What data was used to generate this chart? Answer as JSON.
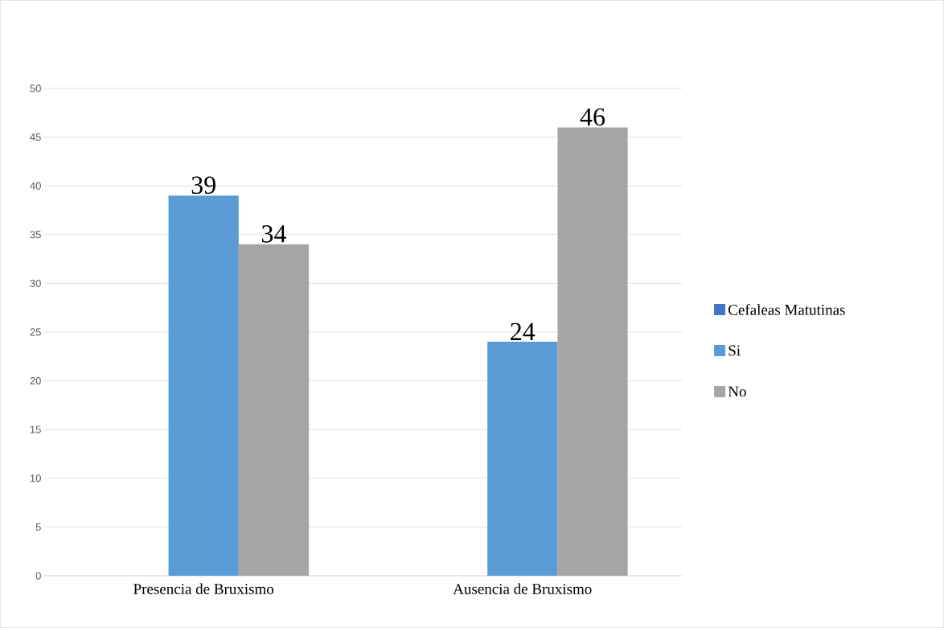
{
  "chart_data": {
    "type": "bar",
    "categories": [
      "Presencia de Bruxismo",
      "Ausencia de Bruxismo"
    ],
    "series": [
      {
        "name": "Cefaleas Matutinas",
        "color": "#4472c4",
        "values": [
          null,
          null
        ]
      },
      {
        "name": "Si",
        "color": "#5b9bd5",
        "values": [
          39,
          24
        ]
      },
      {
        "name": "No",
        "color": "#a5a5a5",
        "values": [
          34,
          46
        ]
      }
    ],
    "ylim": [
      0,
      50
    ],
    "yticks": [
      0,
      5,
      10,
      15,
      20,
      25,
      30,
      35,
      40,
      45,
      50
    ],
    "grid": "y",
    "legend": "right",
    "data_labels": true
  }
}
